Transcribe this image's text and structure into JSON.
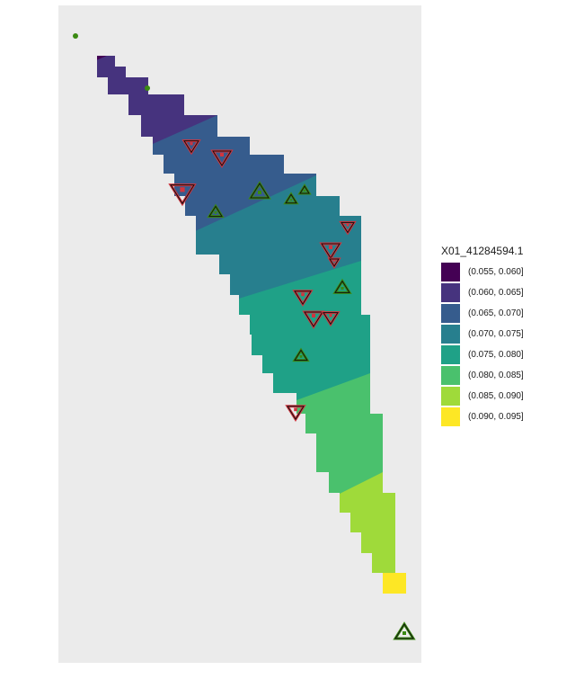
{
  "legend": {
    "title": "X01_41284594.1",
    "items": [
      {
        "label": "(0.055, 0.060]",
        "color": "#440154"
      },
      {
        "label": "(0.060, 0.065]",
        "color": "#46337E"
      },
      {
        "label": "(0.065, 0.070]",
        "color": "#365C8D"
      },
      {
        "label": "(0.070, 0.075]",
        "color": "#277F8E"
      },
      {
        "label": "(0.075, 0.080]",
        "color": "#1FA187"
      },
      {
        "label": "(0.080, 0.085]",
        "color": "#4AC16D"
      },
      {
        "label": "(0.085, 0.090]",
        "color": "#9FDA3A"
      },
      {
        "label": "(0.090, 0.095]",
        "color": "#FDE725"
      }
    ]
  },
  "colors": {
    "panel": "#EBEBEB",
    "decrease_marker": "#D2353F",
    "increase_marker": "#3A8A12"
  }
}
